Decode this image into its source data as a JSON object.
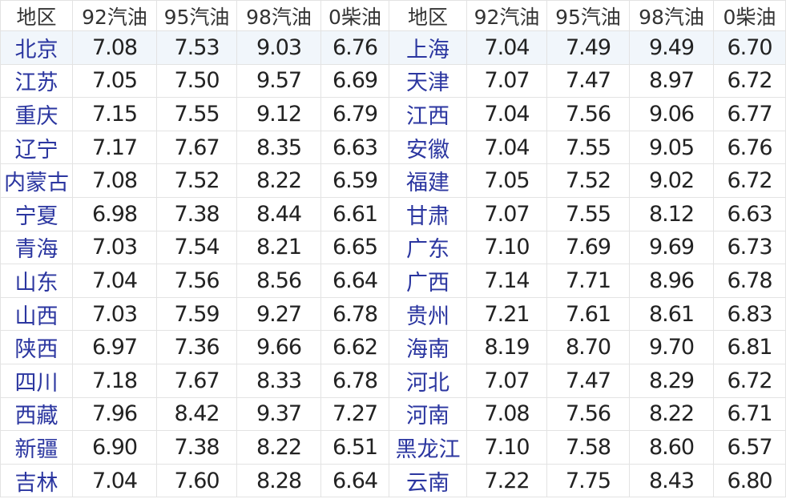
{
  "headers": [
    "地区",
    "92汽油",
    "95汽油",
    "98汽油",
    "0柴油",
    "地区",
    "92汽油",
    "95汽油",
    "98汽油",
    "0柴油"
  ],
  "rows": [
    [
      "北京",
      "7.08",
      "7.53",
      "9.03",
      "6.76",
      "上海",
      "7.04",
      "7.49",
      "9.49",
      "6.70"
    ],
    [
      "江苏",
      "7.05",
      "7.50",
      "9.57",
      "6.69",
      "天津",
      "7.07",
      "7.47",
      "8.97",
      "6.72"
    ],
    [
      "重庆",
      "7.15",
      "7.55",
      "9.12",
      "6.79",
      "江西",
      "7.04",
      "7.56",
      "9.06",
      "6.77"
    ],
    [
      "辽宁",
      "7.17",
      "7.67",
      "8.35",
      "6.63",
      "安徽",
      "7.04",
      "7.55",
      "9.05",
      "6.76"
    ],
    [
      "内蒙古",
      "7.08",
      "7.52",
      "8.22",
      "6.59",
      "福建",
      "7.05",
      "7.52",
      "9.02",
      "6.72"
    ],
    [
      "宁夏",
      "6.98",
      "7.38",
      "8.44",
      "6.61",
      "甘肃",
      "7.07",
      "7.55",
      "8.12",
      "6.63"
    ],
    [
      "青海",
      "7.03",
      "7.54",
      "8.21",
      "6.65",
      "广东",
      "7.10",
      "7.69",
      "9.69",
      "6.73"
    ],
    [
      "山东",
      "7.04",
      "7.56",
      "8.56",
      "6.64",
      "广西",
      "7.14",
      "7.71",
      "8.96",
      "6.78"
    ],
    [
      "山西",
      "7.03",
      "7.59",
      "9.27",
      "6.78",
      "贵州",
      "7.21",
      "7.61",
      "8.61",
      "6.83"
    ],
    [
      "陕西",
      "6.97",
      "7.36",
      "9.66",
      "6.62",
      "海南",
      "8.19",
      "8.70",
      "9.70",
      "6.81"
    ],
    [
      "四川",
      "7.18",
      "7.67",
      "8.33",
      "6.78",
      "河北",
      "7.07",
      "7.47",
      "8.29",
      "6.72"
    ],
    [
      "西藏",
      "7.96",
      "8.42",
      "9.37",
      "7.27",
      "河南",
      "7.08",
      "7.56",
      "8.22",
      "6.71"
    ],
    [
      "新疆",
      "6.90",
      "7.38",
      "8.22",
      "6.51",
      "黑龙江",
      "7.10",
      "7.58",
      "8.60",
      "6.57"
    ],
    [
      "吉林",
      "7.04",
      "7.60",
      "8.28",
      "6.64",
      "云南",
      "7.22",
      "7.75",
      "8.43",
      "6.80"
    ]
  ]
}
